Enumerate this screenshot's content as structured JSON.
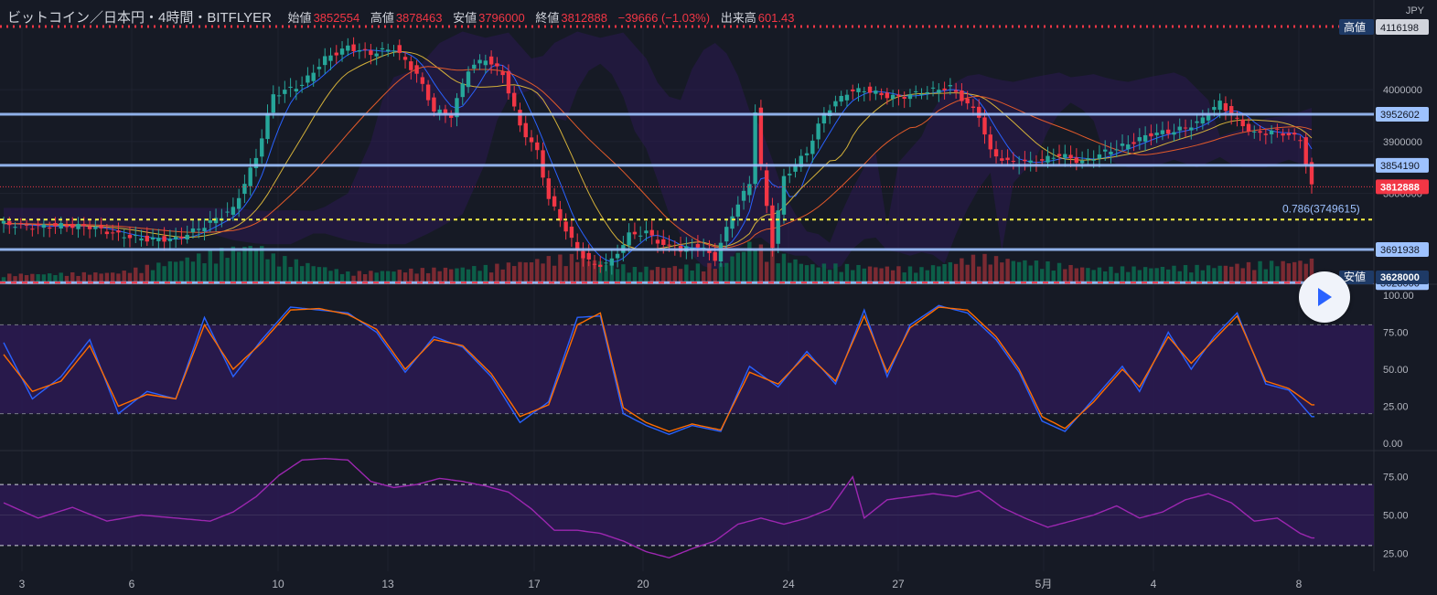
{
  "header": {
    "title": "ビットコイン／日本円・4時間・BITFLYER",
    "open_label": "始値",
    "open_value": "3852554",
    "high_label": "高値",
    "high_value": "3878463",
    "low_label": "安値",
    "low_value": "3796000",
    "close_label": "終値",
    "close_value": "3812888",
    "change": "−39666 (−1.03%)",
    "volume_label": "出来高",
    "volume_value": "601.43"
  },
  "currency": "JPY",
  "markers": {
    "high_label": "高値",
    "high_value": "4116198",
    "low_label": "安値",
    "low_value": "3628000",
    "current_price": "3812888"
  },
  "fib_label": "0.786(3749615)",
  "colors": {
    "background": "#161a25",
    "up": "#089981",
    "down": "#f23645",
    "level_line": "#9ec2ff",
    "fib_line": "#f5f046",
    "stoch_k": "#2962ff",
    "stoch_d": "#ff6d00",
    "rsi": "#9c27b0",
    "band_fill": "#2b1a52"
  },
  "chart_data": [
    {
      "type": "candlestick",
      "symbol": "ビットコイン／日本円",
      "interval": "4時間",
      "exchange": "BITFLYER",
      "x_tick_labels": [
        "3",
        "6",
        "10",
        "13",
        "17",
        "20",
        "24",
        "27",
        "5月",
        "4",
        "8"
      ],
      "y_ticks": [
        3800000,
        3900000,
        4000000
      ],
      "ylim": [
        3625000,
        4120000
      ],
      "horizontal_levels": [
        {
          "value": 3952602,
          "label": "3952602"
        },
        {
          "value": 3854190,
          "label": "3854190"
        },
        {
          "value": 3691938,
          "label": "3691938"
        },
        {
          "value": 3628000,
          "label": "3628000"
        }
      ],
      "fib_level": {
        "ratio": 0.786,
        "value": 3749615
      },
      "period_high": 4116198,
      "period_low": 3628000,
      "last_close": 3812888,
      "close_path": [
        [
          0,
          3742000
        ],
        [
          5,
          3736000
        ],
        [
          10,
          3738000
        ],
        [
          15,
          3736000
        ],
        [
          20,
          3720000
        ],
        [
          25,
          3712000
        ],
        [
          30,
          3712000
        ],
        [
          35,
          3738000
        ],
        [
          40,
          3770000
        ],
        [
          44,
          3870000
        ],
        [
          47,
          3990000
        ],
        [
          52,
          4010000
        ],
        [
          56,
          4060000
        ],
        [
          60,
          4082000
        ],
        [
          64,
          4070000
        ],
        [
          68,
          4080000
        ],
        [
          72,
          4030000
        ],
        [
          75,
          3960000
        ],
        [
          78,
          3950000
        ],
        [
          81,
          4040000
        ],
        [
          84,
          4060000
        ],
        [
          87,
          4030000
        ],
        [
          90,
          3930000
        ],
        [
          93,
          3880000
        ],
        [
          95,
          3790000
        ],
        [
          98,
          3730000
        ],
        [
          100,
          3690000
        ],
        [
          103,
          3660000
        ],
        [
          106,
          3670000
        ],
        [
          109,
          3720000
        ],
        [
          112,
          3725000
        ],
        [
          115,
          3700000
        ],
        [
          118,
          3690000
        ],
        [
          121,
          3700000
        ],
        [
          124,
          3675000
        ],
        [
          127,
          3760000
        ],
        [
          130,
          3820000
        ],
        [
          131,
          3960000
        ],
        [
          132,
          3850000
        ],
        [
          134,
          3700000
        ],
        [
          136,
          3830000
        ],
        [
          140,
          3880000
        ],
        [
          143,
          3955000
        ],
        [
          147,
          3995000
        ],
        [
          150,
          4000000
        ],
        [
          153,
          3990000
        ],
        [
          156,
          3985000
        ],
        [
          160,
          3995000
        ],
        [
          165,
          4005000
        ],
        [
          170,
          3950000
        ],
        [
          172,
          3880000
        ],
        [
          175,
          3860000
        ],
        [
          180,
          3860000
        ],
        [
          184,
          3875000
        ],
        [
          188,
          3860000
        ],
        [
          192,
          3880000
        ],
        [
          196,
          3895000
        ],
        [
          200,
          3915000
        ],
        [
          204,
          3920000
        ],
        [
          208,
          3935000
        ],
        [
          212,
          3975000
        ],
        [
          215,
          3940000
        ],
        [
          218,
          3915000
        ],
        [
          222,
          3920000
        ],
        [
          226,
          3905000
        ],
        [
          228,
          3812888
        ]
      ],
      "volume_path": [
        [
          0,
          0.15
        ],
        [
          20,
          0.2
        ],
        [
          44,
          0.9
        ],
        [
          47,
          0.6
        ],
        [
          60,
          0.2
        ],
        [
          85,
          0.35
        ],
        [
          95,
          0.55
        ],
        [
          100,
          0.6
        ],
        [
          110,
          0.3
        ],
        [
          125,
          0.4
        ],
        [
          131,
          1.0
        ],
        [
          132,
          0.8
        ],
        [
          140,
          0.4
        ],
        [
          160,
          0.3
        ],
        [
          170,
          0.6
        ],
        [
          190,
          0.3
        ],
        [
          210,
          0.35
        ],
        [
          228,
          0.5
        ]
      ]
    },
    {
      "type": "line",
      "indicator": "stochastic",
      "y_ticks": [
        0,
        25,
        50,
        75,
        100
      ],
      "ylim": [
        0,
        100
      ],
      "band": [
        20,
        80
      ],
      "series_k": [
        [
          0,
          68
        ],
        [
          5,
          30
        ],
        [
          10,
          45
        ],
        [
          15,
          70
        ],
        [
          20,
          20
        ],
        [
          25,
          35
        ],
        [
          30,
          30
        ],
        [
          35,
          85
        ],
        [
          40,
          45
        ],
        [
          45,
          70
        ],
        [
          50,
          92
        ],
        [
          55,
          90
        ],
        [
          60,
          88
        ],
        [
          65,
          75
        ],
        [
          70,
          48
        ],
        [
          75,
          72
        ],
        [
          80,
          65
        ],
        [
          85,
          45
        ],
        [
          90,
          14
        ],
        [
          95,
          28
        ],
        [
          100,
          85
        ],
        [
          104,
          86
        ],
        [
          108,
          20
        ],
        [
          112,
          12
        ],
        [
          116,
          6
        ],
        [
          120,
          12
        ],
        [
          125,
          8
        ],
        [
          130,
          52
        ],
        [
          135,
          38
        ],
        [
          140,
          62
        ],
        [
          145,
          40
        ],
        [
          150,
          90
        ],
        [
          154,
          45
        ],
        [
          158,
          80
        ],
        [
          163,
          93
        ],
        [
          168,
          88
        ],
        [
          173,
          70
        ],
        [
          177,
          48
        ],
        [
          181,
          15
        ],
        [
          185,
          8
        ],
        [
          190,
          30
        ],
        [
          195,
          52
        ],
        [
          198,
          35
        ],
        [
          203,
          75
        ],
        [
          207,
          50
        ],
        [
          211,
          72
        ],
        [
          215,
          88
        ],
        [
          220,
          40
        ],
        [
          224,
          36
        ],
        [
          228,
          18
        ]
      ],
      "series_d": [
        [
          0,
          60
        ],
        [
          5,
          35
        ],
        [
          10,
          42
        ],
        [
          15,
          66
        ],
        [
          20,
          25
        ],
        [
          25,
          33
        ],
        [
          30,
          30
        ],
        [
          35,
          80
        ],
        [
          40,
          50
        ],
        [
          45,
          68
        ],
        [
          50,
          90
        ],
        [
          55,
          91
        ],
        [
          60,
          87
        ],
        [
          65,
          77
        ],
        [
          70,
          50
        ],
        [
          75,
          70
        ],
        [
          80,
          66
        ],
        [
          85,
          47
        ],
        [
          90,
          18
        ],
        [
          95,
          26
        ],
        [
          100,
          80
        ],
        [
          104,
          88
        ],
        [
          108,
          24
        ],
        [
          112,
          14
        ],
        [
          116,
          8
        ],
        [
          120,
          13
        ],
        [
          125,
          9
        ],
        [
          130,
          48
        ],
        [
          135,
          40
        ],
        [
          140,
          60
        ],
        [
          145,
          42
        ],
        [
          150,
          86
        ],
        [
          154,
          48
        ],
        [
          158,
          78
        ],
        [
          163,
          92
        ],
        [
          168,
          90
        ],
        [
          173,
          72
        ],
        [
          177,
          50
        ],
        [
          181,
          18
        ],
        [
          185,
          10
        ],
        [
          190,
          28
        ],
        [
          195,
          50
        ],
        [
          198,
          38
        ],
        [
          203,
          72
        ],
        [
          207,
          54
        ],
        [
          211,
          70
        ],
        [
          215,
          86
        ],
        [
          220,
          42
        ],
        [
          224,
          37
        ],
        [
          228,
          26
        ]
      ]
    },
    {
      "type": "line",
      "indicator": "rsi",
      "y_ticks": [
        25,
        50,
        75
      ],
      "ylim": [
        15,
        85
      ],
      "band": [
        30,
        70
      ],
      "series": [
        [
          0,
          58
        ],
        [
          6,
          48
        ],
        [
          12,
          55
        ],
        [
          18,
          46
        ],
        [
          24,
          50
        ],
        [
          30,
          48
        ],
        [
          36,
          46
        ],
        [
          40,
          52
        ],
        [
          44,
          62
        ],
        [
          48,
          76
        ],
        [
          52,
          86
        ],
        [
          56,
          87
        ],
        [
          60,
          86
        ],
        [
          64,
          72
        ],
        [
          68,
          68
        ],
        [
          72,
          70
        ],
        [
          76,
          74
        ],
        [
          80,
          72
        ],
        [
          84,
          69
        ],
        [
          88,
          65
        ],
        [
          92,
          54
        ],
        [
          96,
          40
        ],
        [
          100,
          40
        ],
        [
          104,
          38
        ],
        [
          108,
          33
        ],
        [
          112,
          26
        ],
        [
          116,
          22
        ],
        [
          120,
          28
        ],
        [
          124,
          33
        ],
        [
          128,
          44
        ],
        [
          132,
          48
        ],
        [
          136,
          44
        ],
        [
          140,
          48
        ],
        [
          144,
          54
        ],
        [
          148,
          75
        ],
        [
          150,
          48
        ],
        [
          154,
          60
        ],
        [
          158,
          62
        ],
        [
          162,
          64
        ],
        [
          166,
          62
        ],
        [
          170,
          66
        ],
        [
          174,
          55
        ],
        [
          178,
          48
        ],
        [
          182,
          42
        ],
        [
          186,
          46
        ],
        [
          190,
          50
        ],
        [
          194,
          56
        ],
        [
          198,
          48
        ],
        [
          202,
          52
        ],
        [
          206,
          60
        ],
        [
          210,
          64
        ],
        [
          214,
          58
        ],
        [
          218,
          46
        ],
        [
          222,
          48
        ],
        [
          226,
          38
        ],
        [
          228,
          35
        ]
      ]
    }
  ]
}
